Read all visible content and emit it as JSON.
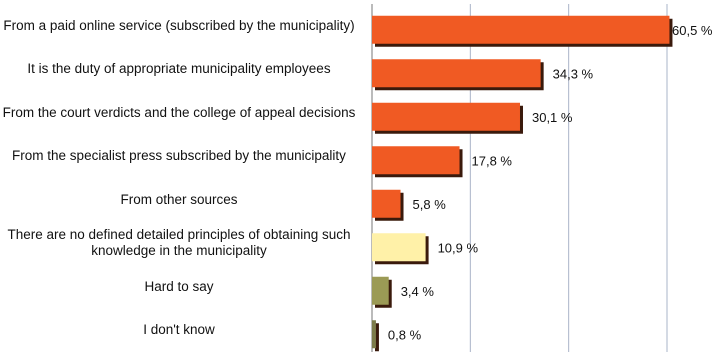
{
  "chart_data": {
    "type": "bar",
    "orientation": "horizontal",
    "categories": [
      "From a paid online service (subscribed by the municipality)",
      "It is the duty of appropriate municipality employees",
      "From the court verdicts and the college of appeal decisions",
      "From the specialist press subscribed by the municipality",
      "From other sources",
      "There are no defined detailed principles of obtaining such knowledge in the municipality",
      "Hard to say",
      "I don't know"
    ],
    "values": [
      60.5,
      34.3,
      30.1,
      17.8,
      5.8,
      10.9,
      3.4,
      0.8
    ],
    "value_labels": [
      "60,5 %",
      "34,3 %",
      "30,1 %",
      "17,8 %",
      "5,8 %",
      "10,9 %",
      "3,4 %",
      "0,8 %"
    ],
    "bar_colors": [
      "#f05a23",
      "#f05a23",
      "#f05a23",
      "#f05a23",
      "#f05a23",
      "#fff1a8",
      "#9b9a55",
      "#7d7c4a"
    ],
    "shadow_color": "#3a1a0c",
    "xlim": [
      0,
      60
    ],
    "grid": true,
    "grid_color": "#aab4c8"
  }
}
